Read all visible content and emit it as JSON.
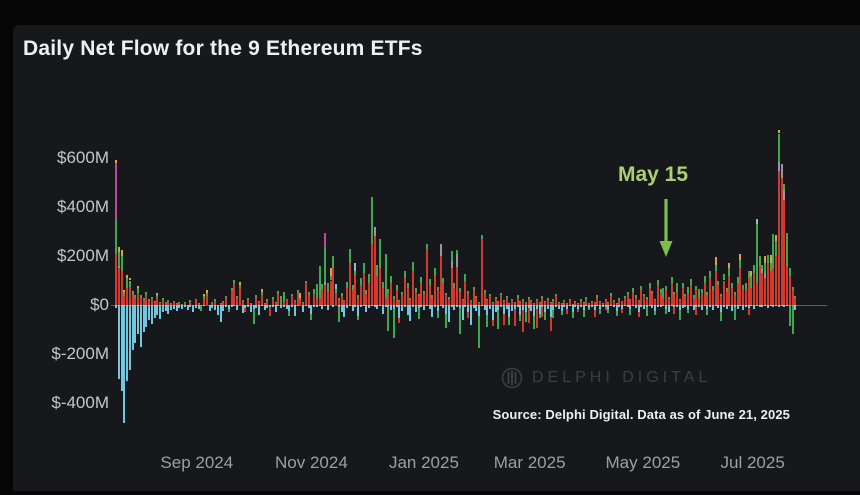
{
  "page": {
    "title": "Daily Net Flow for the 9 Ethereum ETFs"
  },
  "annotation": {
    "label": "May 15",
    "arrow_color": "#7cbf4a",
    "text_color": "#a9d173"
  },
  "source_note": "Source: Delphi Digital. Data as of June 21, 2025",
  "watermark": {
    "text": "DELPHI DIGITAL"
  },
  "chart_data": {
    "type": "bar",
    "stacked": true,
    "title": "Daily Net Flow for the 9 Ethereum ETFs",
    "unit": "$M (USD millions, daily net flow)",
    "legend": "none shown — 9 ETF issuers stacked as unlabeled colors",
    "grid": false,
    "y_range": [
      -520,
      760
    ],
    "y_ticks": [
      {
        "label": "$600M",
        "value": 600
      },
      {
        "label": "$400M",
        "value": 400
      },
      {
        "label": "$200M",
        "value": 200
      },
      {
        "label": "$0",
        "value": 0
      },
      {
        "label": "$-200M",
        "value": -200
      },
      {
        "label": "$-400M",
        "value": -400
      }
    ],
    "x_ticks": [
      {
        "label": "Sep 2024",
        "pos": 0.12
      },
      {
        "label": "Nov 2024",
        "pos": 0.288
      },
      {
        "label": "Jan 2025",
        "pos": 0.453
      },
      {
        "label": "Mar 2025",
        "pos": 0.608
      },
      {
        "label": "May 2025",
        "pos": 0.774
      },
      {
        "label": "Jul 2025",
        "pos": 0.935
      }
    ],
    "palette": {
      "red": "#d23a2d",
      "green": "#3fa74d",
      "cyan": "#72c6dd",
      "magenta": "#bb4a9b",
      "orange": "#d9a44a",
      "lavender": "#9e93a6"
    },
    "bar_columns": [
      "pos_red",
      "pos_green",
      "neg_cyan",
      "neg_green",
      "neg_red",
      "pos_magenta",
      "pos_orange",
      "pos_cyan",
      "pos_lavender"
    ],
    "pos_stack_order": [
      "red",
      "lavender",
      "green",
      "magenta",
      "orange",
      "cyan"
    ],
    "neg_stack_order": [
      "cyan",
      "green",
      "red"
    ],
    "bars": [
      [
        210,
        140,
        12,
        0,
        0,
        230,
        10
      ],
      [
        150,
        55,
        300,
        0,
        0,
        0,
        20,
        0,
        10
      ],
      [
        140,
        60,
        350,
        0,
        0,
        0,
        25
      ],
      [
        35,
        20,
        480,
        0,
        0,
        0,
        8
      ],
      [
        70,
        40,
        310,
        0,
        0,
        0,
        12
      ],
      [
        75,
        25,
        265,
        0,
        0,
        0,
        10
      ],
      [
        40,
        18,
        185
      ],
      [
        28,
        12,
        155
      ],
      [
        50,
        20,
        120,
        0,
        0,
        0,
        8
      ],
      [
        30,
        10,
        170
      ],
      [
        22,
        8,
        112
      ],
      [
        40,
        15,
        90
      ],
      [
        18,
        6,
        62
      ],
      [
        25,
        8,
        78
      ],
      [
        12,
        5,
        52
      ],
      [
        30,
        12,
        42,
        0,
        0,
        0,
        6
      ],
      [
        10,
        4,
        58
      ],
      [
        22,
        6,
        30
      ],
      [
        8,
        3,
        26
      ],
      [
        15,
        5,
        36
      ],
      [
        6,
        2,
        20
      ],
      [
        12,
        4,
        16
      ],
      [
        5,
        2,
        24
      ],
      [
        10,
        3,
        12
      ],
      [
        4,
        1,
        18
      ],
      [
        8,
        4,
        10
      ],
      [
        0,
        0,
        22
      ],
      [
        14,
        6,
        8
      ],
      [
        0,
        0,
        30
      ],
      [
        20,
        5,
        12
      ],
      [
        6,
        2,
        18
      ],
      [
        0,
        0,
        0,
        26
      ],
      [
        25,
        10,
        6,
        0,
        0,
        0,
        8
      ],
      [
        35,
        12,
        0,
        0,
        0,
        0,
        15
      ],
      [
        0,
        0,
        24
      ],
      [
        10,
        3,
        14
      ],
      [
        18,
        6,
        20
      ],
      [
        0,
        0,
        40
      ],
      [
        5,
        2,
        70
      ],
      [
        12,
        4,
        26
      ],
      [
        28,
        8,
        10
      ],
      [
        0,
        0,
        16,
        12
      ],
      [
        60,
        10,
        8
      ],
      [
        88,
        15,
        5
      ],
      [
        30,
        8,
        20
      ],
      [
        70,
        12,
        0,
        0,
        0,
        0,
        10
      ],
      [
        15,
        5,
        34
      ],
      [
        0,
        0,
        12,
        0,
        18
      ],
      [
        22,
        6,
        8
      ],
      [
        8,
        2,
        28
      ],
      [
        0,
        0,
        18,
        60
      ],
      [
        30,
        10,
        12
      ],
      [
        12,
        4,
        42
      ],
      [
        40,
        14,
        6,
        0,
        0,
        0,
        10
      ],
      [
        6,
        2,
        22
      ],
      [
        18,
        5,
        14
      ],
      [
        0,
        0,
        8,
        0,
        35
      ],
      [
        25,
        8,
        10
      ],
      [
        10,
        3,
        30
      ],
      [
        45,
        12,
        5
      ],
      [
        0,
        35,
        14
      ],
      [
        12,
        40,
        8
      ],
      [
        20,
        6,
        16
      ],
      [
        0,
        0,
        26,
        20
      ],
      [
        35,
        10,
        10
      ],
      [
        15,
        5,
        44
      ],
      [
        50,
        12,
        6
      ],
      [
        20,
        10,
        0,
        0,
        0,
        0,
        20
      ],
      [
        8,
        3,
        30
      ],
      [
        88,
        10,
        5
      ],
      [
        40,
        15,
        12
      ],
      [
        0,
        0,
        35,
        25
      ],
      [
        45,
        20,
        10
      ],
      [
        25,
        60,
        8
      ],
      [
        30,
        130,
        6
      ],
      [
        60,
        25,
        15
      ],
      [
        80,
        140,
        5,
        0,
        0,
        60,
        0,
        0,
        12
      ],
      [
        55,
        35,
        20
      ],
      [
        100,
        20,
        0,
        0,
        0,
        0,
        30
      ],
      [
        150,
        50,
        8
      ],
      [
        50,
        15,
        0,
        0,
        0,
        0,
        0,
        20
      ],
      [
        20,
        8,
        10,
        60
      ],
      [
        35,
        12,
        30
      ],
      [
        15,
        6,
        50
      ],
      [
        70,
        25,
        12
      ],
      [
        170,
        60,
        5
      ],
      [
        60,
        20,
        25
      ],
      [
        120,
        20,
        8,
        0,
        0,
        0,
        0,
        30
      ],
      [
        30,
        10,
        45,
        15
      ],
      [
        80,
        30,
        10
      ],
      [
        130,
        40,
        6
      ],
      [
        45,
        15,
        30
      ],
      [
        90,
        35,
        12
      ],
      [
        250,
        190,
        5
      ],
      [
        280,
        0,
        8,
        0,
        0,
        0,
        0,
        0,
        40
      ],
      [
        120,
        45,
        15
      ],
      [
        150,
        120,
        6
      ],
      [
        70,
        25,
        35
      ],
      [
        30,
        180,
        10
      ],
      [
        50,
        15,
        8,
        100
      ],
      [
        90,
        30,
        20
      ],
      [
        25,
        10,
        15,
        120
      ],
      [
        60,
        20,
        10
      ],
      [
        15,
        5,
        55,
        0,
        20
      ],
      [
        40,
        12,
        25
      ],
      [
        110,
        30,
        8
      ],
      [
        70,
        20,
        40
      ],
      [
        20,
        8,
        65
      ],
      [
        140,
        35,
        10
      ],
      [
        55,
        15,
        30
      ],
      [
        35,
        10,
        12,
        45
      ],
      [
        90,
        25,
        8
      ],
      [
        45,
        12,
        20
      ],
      [
        230,
        20,
        6
      ],
      [
        80,
        25,
        15
      ],
      [
        30,
        10,
        50
      ],
      [
        120,
        30,
        8
      ],
      [
        60,
        15,
        25,
        30
      ],
      [
        200,
        0,
        5,
        0,
        0,
        0,
        0,
        0,
        50
      ],
      [
        90,
        20,
        12
      ],
      [
        40,
        10,
        35,
        60
      ],
      [
        25,
        8,
        70
      ],
      [
        150,
        40,
        8,
        0,
        0,
        0,
        0,
        0,
        30
      ],
      [
        70,
        18,
        20
      ],
      [
        155,
        15,
        8,
        0,
        0,
        0,
        0,
        0,
        55
      ],
      [
        55,
        15,
        12,
        105
      ],
      [
        20,
        6,
        60
      ],
      [
        100,
        25,
        10
      ],
      [
        45,
        12,
        30,
        0,
        25
      ],
      [
        15,
        5,
        80
      ],
      [
        60,
        15,
        12
      ],
      [
        30,
        8,
        25
      ],
      [
        10,
        4,
        45,
        130
      ],
      [
        270,
        15,
        5
      ],
      [
        50,
        12,
        20
      ],
      [
        20,
        6,
        40,
        50
      ],
      [
        35,
        10,
        15
      ],
      [
        8,
        3,
        60,
        0,
        25
      ],
      [
        25,
        8,
        30
      ],
      [
        12,
        4,
        20,
        80
      ],
      [
        40,
        10,
        10
      ],
      [
        15,
        5,
        35,
        0,
        45
      ],
      [
        28,
        8,
        18
      ],
      [
        6,
        2,
        50,
        30
      ],
      [
        20,
        6,
        25
      ],
      [
        10,
        3,
        15,
        0,
        70
      ],
      [
        30,
        10,
        8
      ],
      [
        12,
        4,
        40,
        25
      ],
      [
        18,
        5,
        20,
        0,
        90
      ],
      [
        8,
        3,
        30,
        40
      ],
      [
        25,
        8,
        12,
        0,
        60
      ],
      [
        15,
        5,
        25
      ],
      [
        5,
        2,
        45,
        55
      ],
      [
        20,
        6,
        15,
        0,
        80
      ],
      [
        10,
        3,
        35,
        20
      ],
      [
        30,
        8,
        10,
        0,
        40
      ],
      [
        12,
        4,
        28,
        35
      ],
      [
        22,
        6,
        18
      ],
      [
        8,
        3,
        50,
        0,
        55
      ],
      [
        18,
        5,
        22,
        30
      ],
      [
        35,
        10,
        8
      ],
      [
        10,
        3,
        15
      ],
      [
        5,
        2,
        25,
        15
      ],
      [
        15,
        5,
        8
      ],
      [
        8,
        2,
        18,
        0,
        20
      ],
      [
        20,
        6,
        5
      ],
      [
        4,
        1,
        30,
        25
      ],
      [
        12,
        4,
        10
      ],
      [
        6,
        2,
        15,
        0,
        15
      ],
      [
        18,
        5,
        8
      ],
      [
        10,
        3,
        20,
        30
      ],
      [
        25,
        8,
        5
      ],
      [
        5,
        2,
        12,
        10
      ],
      [
        14,
        4,
        8
      ],
      [
        8,
        3,
        22,
        0,
        25
      ],
      [
        30,
        10,
        6
      ],
      [
        12,
        4,
        15,
        20
      ],
      [
        6,
        2,
        10
      ],
      [
        20,
        6,
        8,
        0,
        12
      ],
      [
        10,
        3,
        18,
        15
      ],
      [
        35,
        12,
        5
      ],
      [
        15,
        5,
        10
      ],
      [
        8,
        2,
        25,
        20
      ],
      [
        22,
        7,
        8
      ],
      [
        12,
        4,
        15,
        0,
        18
      ],
      [
        28,
        9,
        6
      ],
      [
        40,
        12,
        8
      ],
      [
        20,
        6,
        15,
        25
      ],
      [
        55,
        15,
        5
      ],
      [
        30,
        10,
        12
      ],
      [
        15,
        5,
        30,
        0,
        20
      ],
      [
        60,
        18,
        8
      ],
      [
        35,
        10,
        15
      ],
      [
        25,
        8,
        10,
        35
      ],
      [
        70,
        20,
        5
      ],
      [
        45,
        12,
        12
      ],
      [
        20,
        6,
        25,
        15
      ],
      [
        80,
        22,
        8
      ],
      [
        50,
        15,
        10
      ],
      [
        30,
        40,
        6
      ],
      [
        60,
        18,
        15,
        20
      ],
      [
        25,
        8,
        30
      ],
      [
        90,
        25,
        5
      ],
      [
        40,
        12,
        10,
        0,
        25
      ],
      [
        55,
        35,
        8
      ],
      [
        20,
        6,
        20,
        40
      ],
      [
        70,
        20,
        12
      ],
      [
        35,
        10,
        8
      ],
      [
        45,
        30,
        15,
        18
      ],
      [
        80,
        25,
        6
      ],
      [
        30,
        10,
        22
      ],
      [
        60,
        18,
        10,
        0,
        30
      ],
      [
        25,
        40,
        8
      ],
      [
        50,
        15,
        20
      ],
      [
        90,
        28,
        5
      ],
      [
        40,
        12,
        15,
        25
      ],
      [
        110,
        30,
        8
      ],
      [
        60,
        18,
        20
      ],
      [
        140,
        25,
        5,
        0,
        0,
        0,
        30
      ],
      [
        80,
        20,
        12
      ],
      [
        35,
        10,
        30,
        35
      ],
      [
        100,
        28,
        8
      ],
      [
        55,
        15,
        15
      ],
      [
        120,
        30,
        6,
        0,
        0,
        0,
        20
      ],
      [
        70,
        20,
        25
      ],
      [
        40,
        12,
        10,
        50
      ],
      [
        90,
        25,
        15
      ],
      [
        150,
        35,
        5,
        0,
        0,
        0,
        25
      ],
      [
        65,
        18,
        20
      ],
      [
        60,
        30,
        8
      ],
      [
        110,
        30,
        12,
        0,
        30
      ],
      [
        70,
        50,
        5,
        0,
        0,
        0,
        20
      ],
      [
        130,
        35,
        15
      ],
      [
        90,
        240,
        6,
        0,
        0,
        0,
        0,
        20
      ],
      [
        160,
        40,
        10
      ],
      [
        130,
        20,
        8,
        0,
        0,
        0,
        0,
        0,
        15
      ],
      [
        110,
        40,
        5,
        0,
        0,
        0,
        30,
        0,
        20
      ],
      [
        170,
        35,
        12
      ],
      [
        140,
        30,
        6,
        0,
        0,
        0,
        35
      ],
      [
        150,
        140,
        8
      ],
      [
        200,
        60,
        5,
        0,
        0,
        0,
        25
      ],
      [
        545,
        115,
        10,
        0,
        0,
        0,
        15,
        0,
        40
      ],
      [
        520,
        0,
        6,
        0,
        0,
        0,
        0,
        0,
        55
      ],
      [
        430,
        25,
        8,
        0,
        0,
        0,
        0,
        0,
        40
      ],
      [
        160,
        135,
        5
      ],
      [
        120,
        30,
        0,
        85
      ],
      [
        60,
        15,
        0,
        120
      ],
      [
        30,
        8,
        20
      ]
    ]
  }
}
